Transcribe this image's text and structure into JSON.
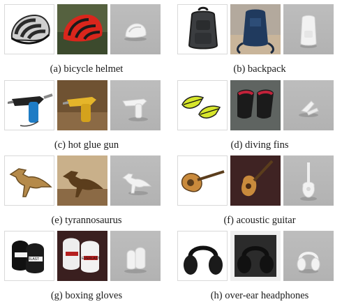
{
  "figure": {
    "rows": [
      [
        {
          "label": "(a) bicycle helmet",
          "icons": [
            "bicycle-helmet-product-image",
            "bicycle-helmet-real-photo",
            "bicycle-helmet-3d-render"
          ]
        },
        {
          "label": "(b) backpack",
          "icons": [
            "backpack-product-image",
            "backpack-real-photo",
            "backpack-3d-render"
          ]
        }
      ],
      [
        {
          "label": "(c) hot glue gun",
          "icons": [
            "hot-glue-gun-product-image",
            "hot-glue-gun-real-photo",
            "hot-glue-gun-3d-render"
          ]
        },
        {
          "label": "(d) diving fins",
          "icons": [
            "diving-fins-product-image",
            "diving-fins-real-photo",
            "diving-fins-3d-render"
          ]
        }
      ],
      [
        {
          "label": "(e) tyrannosaurus",
          "icons": [
            "tyrannosaurus-product-image",
            "tyrannosaurus-real-photo",
            "tyrannosaurus-3d-render"
          ]
        },
        {
          "label": "(f) acoustic guitar",
          "icons": [
            "acoustic-guitar-product-image",
            "acoustic-guitar-real-photo",
            "acoustic-guitar-3d-render"
          ]
        }
      ],
      [
        {
          "label": "(g) boxing gloves",
          "icons": [
            "boxing-gloves-product-image",
            "boxing-gloves-real-photo",
            "boxing-gloves-3d-render"
          ]
        },
        {
          "label": "(h) over-ear headphones",
          "icons": [
            "over-ear-headphones-product-image",
            "over-ear-headphones-real-photo",
            "over-ear-headphones-3d-render"
          ]
        }
      ]
    ],
    "brand_text": {
      "boxing_gloves_product": "EVERLAST",
      "boxing_gloves_real": "EVERLAST"
    },
    "colors": {
      "render_background": "#b7b7b7",
      "render_object": "#f2f2f2",
      "helmet_red": "#d9261c",
      "fin_yellow": "#d7e62b",
      "fin_red": "#c2223a",
      "guitar_wood": "#c98a3c"
    }
  }
}
